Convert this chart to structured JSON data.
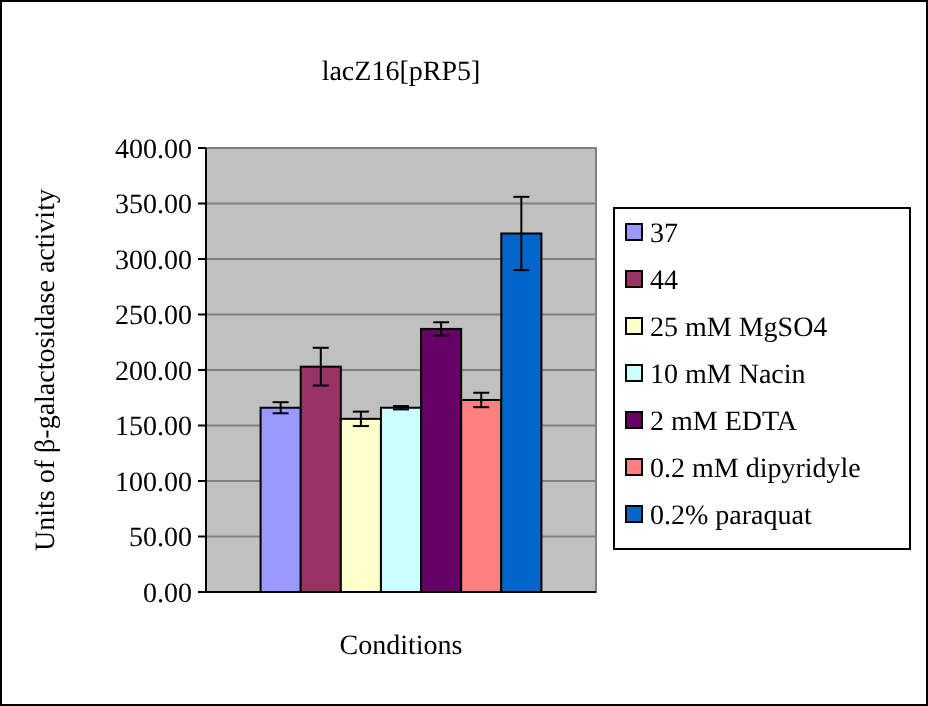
{
  "chart_data": {
    "type": "bar",
    "title": "lacZ16[pRP5]",
    "xlabel": "Conditions",
    "ylabel": "Units of β-galactosidase activity",
    "categories": [
      null
    ],
    "series": [
      {
        "name": "37",
        "color": "#9999ff",
        "values": [
          166
        ],
        "errors": [
          5
        ]
      },
      {
        "name": "44",
        "color": "#993366",
        "values": [
          203
        ],
        "errors": [
          17
        ]
      },
      {
        "name": "25 mM MgSO4",
        "color": "#ffffcc",
        "values": [
          156
        ],
        "errors": [
          6.5
        ]
      },
      {
        "name": "10 mM Nacin",
        "color": "#ccffff",
        "values": [
          166
        ],
        "errors": [
          1.5
        ]
      },
      {
        "name": "2 mM EDTA",
        "color": "#660066",
        "values": [
          237
        ],
        "errors": [
          6
        ]
      },
      {
        "name": "0.2 mM dipyridyle",
        "color": "#ff8080",
        "values": [
          173
        ],
        "errors": [
          6.5
        ]
      },
      {
        "name": "0.2% paraquat",
        "color": "#0066cc",
        "values": [
          323
        ],
        "errors": [
          33
        ]
      }
    ],
    "ylim": [
      0,
      400
    ],
    "yticks": [
      {
        "value": 0,
        "label": "0.00"
      },
      {
        "value": 50,
        "label": "50.00"
      },
      {
        "value": 100,
        "label": "100.00"
      },
      {
        "value": 150,
        "label": "150.00"
      },
      {
        "value": 200,
        "label": "200.00"
      },
      {
        "value": 250,
        "label": "250.00"
      },
      {
        "value": 300,
        "label": "300.00"
      },
      {
        "value": 350,
        "label": "350.00"
      },
      {
        "value": 400,
        "label": "400.00"
      }
    ],
    "grid": "y",
    "legend": "right"
  }
}
